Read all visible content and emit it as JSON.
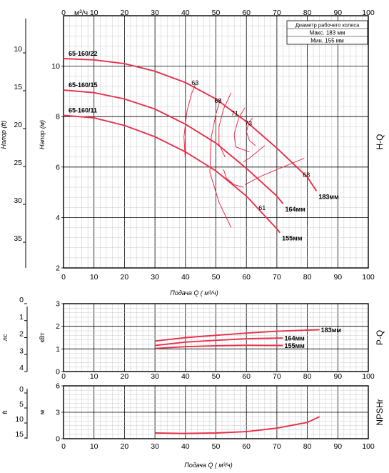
{
  "chart_data": [
    {
      "id": "hq",
      "type": "line",
      "x_axis_label": "Подача Q ( м³/ч)",
      "top_axis_unit": "м³/ч",
      "y_axis_label": "Напор (м)",
      "y2_axis_label": "Напор (ft)",
      "side_label": "H-Q",
      "xlim": [
        0,
        100
      ],
      "ylim": [
        2,
        12
      ],
      "xticks": [
        "0",
        "10",
        "20",
        "30",
        "40",
        "50",
        "60",
        "70",
        "80",
        "90",
        "100"
      ],
      "top_xticks": [
        "0",
        "10",
        "20",
        "30",
        "40",
        "50",
        "60",
        "70",
        "80",
        "90",
        "100"
      ],
      "yticks": [
        "2",
        "4",
        "6",
        "8",
        "10"
      ],
      "y2ticks": [
        "10",
        "15",
        "20",
        "25",
        "30",
        "35"
      ],
      "legend_box": {
        "title": "Диаметр рабочего колеса",
        "max": "Макс. 183 мм",
        "min": "Мин.  155 мм"
      },
      "series": [
        {
          "name": "65-160/22",
          "end_label": "183мм",
          "points": [
            [
              0,
              10.3
            ],
            [
              10,
              10.25
            ],
            [
              20,
              10.1
            ],
            [
              30,
              9.8
            ],
            [
              40,
              9.35
            ],
            [
              50,
              8.7
            ],
            [
              60,
              7.8
            ],
            [
              70,
              6.75
            ],
            [
              80,
              5.6
            ],
            [
              83,
              5.05
            ]
          ]
        },
        {
          "name": "65-160/15",
          "end_label": "164мм",
          "points": [
            [
              0,
              9.05
            ],
            [
              10,
              8.95
            ],
            [
              20,
              8.7
            ],
            [
              30,
              8.3
            ],
            [
              40,
              7.7
            ],
            [
              50,
              6.95
            ],
            [
              60,
              5.95
            ],
            [
              70,
              4.85
            ],
            [
              72,
              4.55
            ]
          ]
        },
        {
          "name": "65-160/11",
          "end_label": "155мм",
          "points": [
            [
              0,
              8.05
            ],
            [
              10,
              7.95
            ],
            [
              20,
              7.65
            ],
            [
              30,
              7.2
            ],
            [
              40,
              6.6
            ],
            [
              50,
              5.85
            ],
            [
              60,
              4.85
            ],
            [
              70,
              3.55
            ],
            [
              71,
              3.4
            ]
          ]
        }
      ],
      "efficiency_labels": [
        "63",
        "68",
        "71",
        "73",
        "68",
        "61"
      ]
    },
    {
      "id": "pq",
      "type": "line",
      "y_axis_label": "кВт",
      "y2_axis_label": "лс",
      "side_label": "P-Q",
      "xlim": [
        0,
        100
      ],
      "ylim": [
        0,
        3
      ],
      "xticks": [
        "0",
        "10",
        "20",
        "30",
        "40",
        "50",
        "60",
        "70",
        "80",
        "90",
        "100"
      ],
      "yticks": [
        "0",
        "1",
        "2",
        "3"
      ],
      "y2ticks": [
        "0",
        "1",
        "2",
        "3",
        "4"
      ],
      "series": [
        {
          "name": "183мм",
          "points": [
            [
              30,
              1.35
            ],
            [
              40,
              1.5
            ],
            [
              50,
              1.6
            ],
            [
              60,
              1.7
            ],
            [
              70,
              1.78
            ],
            [
              84,
              1.85
            ]
          ]
        },
        {
          "name": "164мм",
          "points": [
            [
              30,
              1.15
            ],
            [
              40,
              1.3
            ],
            [
              50,
              1.38
            ],
            [
              60,
              1.45
            ],
            [
              72,
              1.48
            ]
          ]
        },
        {
          "name": "155мм",
          "points": [
            [
              30,
              1.02
            ],
            [
              40,
              1.1
            ],
            [
              50,
              1.14
            ],
            [
              60,
              1.16
            ],
            [
              72,
              1.15
            ]
          ]
        }
      ]
    },
    {
      "id": "npsh",
      "type": "line",
      "x_axis_label": "Подача Q ( м³/ч)",
      "y_axis_label": "м",
      "y2_axis_label": "ft",
      "side_label": "NPSHr",
      "xlim": [
        0,
        100
      ],
      "ylim": [
        0,
        6
      ],
      "xticks": [
        "0",
        "10",
        "20",
        "30",
        "40",
        "50",
        "60",
        "70",
        "80",
        "90",
        "100"
      ],
      "yticks": [
        "0",
        "3",
        "6"
      ],
      "y2ticks": [
        "0",
        "5",
        "10",
        "15"
      ],
      "series": [
        {
          "name": "",
          "points": [
            [
              30,
              0.65
            ],
            [
              40,
              0.6
            ],
            [
              50,
              0.65
            ],
            [
              60,
              0.8
            ],
            [
              70,
              1.2
            ],
            [
              80,
              1.85
            ],
            [
              84,
              2.5
            ]
          ]
        }
      ]
    }
  ]
}
